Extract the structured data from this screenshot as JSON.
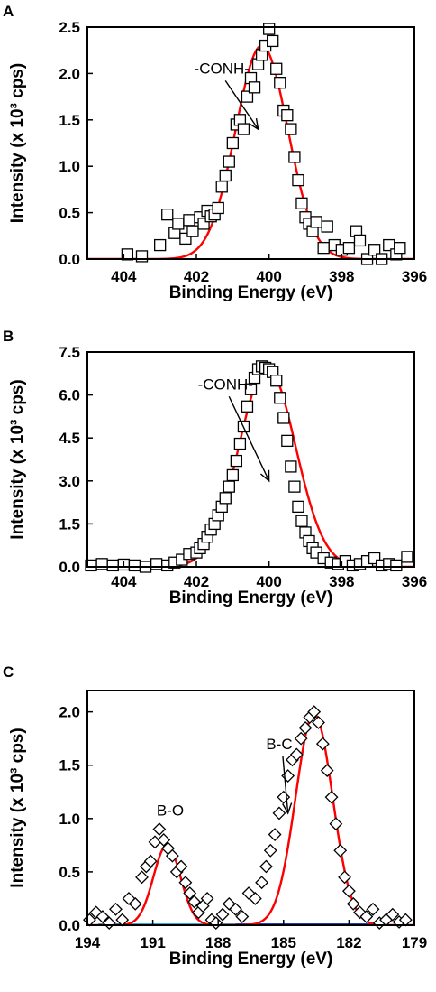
{
  "chart_data": [
    {
      "panel_label": "A",
      "type": "scatter",
      "xlabel": "Binding Energy (eV)",
      "ylabel": "Intensity (x 10³ cps)",
      "xlim": [
        405,
        396
      ],
      "ylim": [
        0,
        2.5
      ],
      "xticks": [
        404,
        402,
        400,
        398,
        396
      ],
      "yticks": [
        0.0,
        0.5,
        1.0,
        1.5,
        2.0,
        2.5
      ],
      "ytick_labels": [
        "0.0",
        "0.5",
        "1.0",
        "1.5",
        "2.0",
        "2.5"
      ],
      "marker": "square",
      "annotations": [
        {
          "text": "-CONH-",
          "x": 401.3,
          "y": 2.0,
          "arrow_to": [
            400.3,
            1.4
          ]
        }
      ],
      "series": [
        {
          "kind": "points",
          "color": "#000000",
          "x": [
            403.9,
            403.5,
            403.0,
            402.8,
            402.6,
            402.5,
            402.3,
            402.2,
            402.1,
            401.9,
            401.8,
            401.7,
            401.6,
            401.5,
            401.4,
            401.3,
            401.2,
            401.1,
            401.0,
            400.9,
            400.8,
            400.7,
            400.6,
            400.5,
            400.4,
            400.3,
            400.2,
            400.1,
            400.0,
            399.9,
            399.8,
            399.7,
            399.6,
            399.5,
            399.4,
            399.3,
            399.2,
            399.1,
            399.0,
            398.9,
            398.8,
            398.7,
            398.5,
            398.4,
            398.2,
            398.0,
            397.8,
            397.6,
            397.5,
            397.3,
            397.1,
            396.9,
            396.7,
            396.5,
            396.4
          ],
          "y": [
            0.05,
            0.03,
            0.15,
            0.48,
            0.28,
            0.38,
            0.22,
            0.42,
            0.3,
            0.45,
            0.38,
            0.52,
            0.46,
            0.48,
            0.55,
            0.78,
            0.9,
            1.05,
            1.25,
            1.45,
            1.5,
            1.4,
            1.75,
            1.95,
            1.85,
            2.1,
            2.2,
            2.3,
            2.48,
            2.35,
            2.05,
            1.9,
            1.6,
            1.55,
            1.4,
            1.1,
            0.85,
            0.6,
            0.45,
            0.38,
            0.3,
            0.4,
            0.12,
            0.35,
            0.15,
            0.1,
            0.12,
            0.3,
            0.2,
            0.0,
            0.1,
            0.0,
            0.15,
            0.05,
            0.12
          ]
        },
        {
          "kind": "fit",
          "color": "#ff0000",
          "model": "gaussian",
          "center": 400.2,
          "amplitude": 2.3,
          "sigma": 0.72
        }
      ]
    },
    {
      "panel_label": "B",
      "type": "scatter",
      "xlabel": "Binding Energy (eV)",
      "ylabel": "Intensity (x 10³ cps)",
      "xlim": [
        405,
        396
      ],
      "ylim": [
        0,
        7.5
      ],
      "xticks": [
        404,
        402,
        400,
        398,
        396
      ],
      "yticks": [
        0.0,
        1.5,
        3.0,
        4.5,
        6.0,
        7.5
      ],
      "ytick_labels": [
        "0.0",
        "1.5",
        "3.0",
        "4.5",
        "6.0",
        "7.5"
      ],
      "marker": "square",
      "annotations": [
        {
          "text": "-CONH-",
          "x": 401.2,
          "y": 6.2,
          "arrow_to": [
            400.0,
            3.0
          ]
        }
      ],
      "series": [
        {
          "kind": "points",
          "color": "#000000",
          "x": [
            404.9,
            404.6,
            404.3,
            404.0,
            403.7,
            403.4,
            403.1,
            402.8,
            402.6,
            402.4,
            402.2,
            402.0,
            401.9,
            401.8,
            401.7,
            401.6,
            401.5,
            401.4,
            401.3,
            401.2,
            401.1,
            401.0,
            400.9,
            400.8,
            400.7,
            400.6,
            400.5,
            400.4,
            400.3,
            400.2,
            400.1,
            400.0,
            399.9,
            399.8,
            399.7,
            399.6,
            399.5,
            399.4,
            399.3,
            399.2,
            399.1,
            399.0,
            398.9,
            398.8,
            398.7,
            398.5,
            398.3,
            398.1,
            397.9,
            397.7,
            397.5,
            397.3,
            397.1,
            396.9,
            396.7,
            396.5,
            396.2
          ],
          "y": [
            0.05,
            0.1,
            0.05,
            0.08,
            0.05,
            0.0,
            0.1,
            0.05,
            0.15,
            0.25,
            0.45,
            0.5,
            0.65,
            0.8,
            1.05,
            1.3,
            1.5,
            1.8,
            2.1,
            2.4,
            2.8,
            3.2,
            3.7,
            4.3,
            4.9,
            5.6,
            6.2,
            6.6,
            6.9,
            7.0,
            6.95,
            6.9,
            6.8,
            6.5,
            5.9,
            5.2,
            4.4,
            3.5,
            2.8,
            2.1,
            1.6,
            1.2,
            0.9,
            0.65,
            0.5,
            0.3,
            0.15,
            0.1,
            0.2,
            0.05,
            0.1,
            0.2,
            0.3,
            0.05,
            0.1,
            0.05,
            0.35
          ]
        },
        {
          "kind": "fit",
          "color": "#ff0000",
          "model": "gaussian",
          "center": 400.05,
          "amplitude": 6.95,
          "sigma": 0.78
        }
      ]
    },
    {
      "panel_label": "C",
      "type": "scatter",
      "xlabel": "Binding Energy (eV)",
      "ylabel": "Intensity (x 10³ cps)",
      "xlim": [
        194,
        179
      ],
      "ylim": [
        0,
        2.2
      ],
      "xticks": [
        194,
        191,
        188,
        185,
        182,
        179
      ],
      "yticks": [
        0.0,
        0.5,
        1.0,
        1.5,
        2.0
      ],
      "ytick_labels": [
        "0.0",
        "0.5",
        "1.0",
        "1.5",
        "2.0"
      ],
      "marker": "diamond",
      "annotations": [
        {
          "text": "B-O",
          "x": 190.2,
          "y": 1.03,
          "arrow_to": null
        },
        {
          "text": "B-C",
          "x": 185.2,
          "y": 1.65,
          "arrow_to": [
            184.8,
            1.05
          ]
        }
      ],
      "series": [
        {
          "kind": "points",
          "color": "#000000",
          "x": [
            193.9,
            193.6,
            193.3,
            193.0,
            192.7,
            192.4,
            192.1,
            191.8,
            191.5,
            191.3,
            191.1,
            190.9,
            190.7,
            190.5,
            190.3,
            190.1,
            189.9,
            189.7,
            189.5,
            189.3,
            189.1,
            188.9,
            188.7,
            188.5,
            188.3,
            188.1,
            187.8,
            187.5,
            187.2,
            186.9,
            186.6,
            186.3,
            186.0,
            185.8,
            185.6,
            185.4,
            185.2,
            185.0,
            184.8,
            184.6,
            184.4,
            184.2,
            184.0,
            183.8,
            183.6,
            183.4,
            183.2,
            183.0,
            182.8,
            182.6,
            182.4,
            182.2,
            182.0,
            181.8,
            181.5,
            181.2,
            180.9,
            180.6,
            180.3,
            180.0,
            179.7,
            179.4
          ],
          "y": [
            0.05,
            0.12,
            0.08,
            0.02,
            0.15,
            0.05,
            0.25,
            0.2,
            0.45,
            0.55,
            0.6,
            0.78,
            0.9,
            0.8,
            0.72,
            0.65,
            0.5,
            0.55,
            0.4,
            0.3,
            0.22,
            0.12,
            0.18,
            0.25,
            0.05,
            0.02,
            0.1,
            0.2,
            0.15,
            0.08,
            0.3,
            0.25,
            0.4,
            0.55,
            0.7,
            0.85,
            1.05,
            1.2,
            1.4,
            1.55,
            1.6,
            1.75,
            1.85,
            1.95,
            2.0,
            1.9,
            1.7,
            1.45,
            1.2,
            0.95,
            0.7,
            0.45,
            0.32,
            0.2,
            0.12,
            0.08,
            0.15,
            0.02,
            0.05,
            0.1,
            0.03,
            0.05
          ]
        },
        {
          "kind": "fit",
          "color": "#ff0000",
          "model": "sum_of_gaussians",
          "components": [
            {
              "center": 190.35,
              "amplitude": 0.75,
              "sigma": 0.62
            },
            {
              "center": 183.6,
              "amplitude": 1.98,
              "sigma": 0.85
            }
          ]
        },
        {
          "kind": "fit",
          "color": "#1f3fbf",
          "model": "gaussian",
          "center": 190.35,
          "amplitude": 0.75,
          "sigma": 0.62
        },
        {
          "kind": "fit",
          "color": "#1f3fbf",
          "model": "gaussian",
          "center": 183.6,
          "amplitude": 1.98,
          "sigma": 0.85
        },
        {
          "kind": "baseline",
          "color": "#33aadd",
          "x": [
            193.5,
            187.2
          ],
          "y": [
            0.0,
            0.0
          ]
        },
        {
          "kind": "baseline",
          "color": "#1f3fbf",
          "x": [
            187.2,
            180.5
          ],
          "y": [
            0.0,
            0.0
          ]
        }
      ]
    }
  ]
}
